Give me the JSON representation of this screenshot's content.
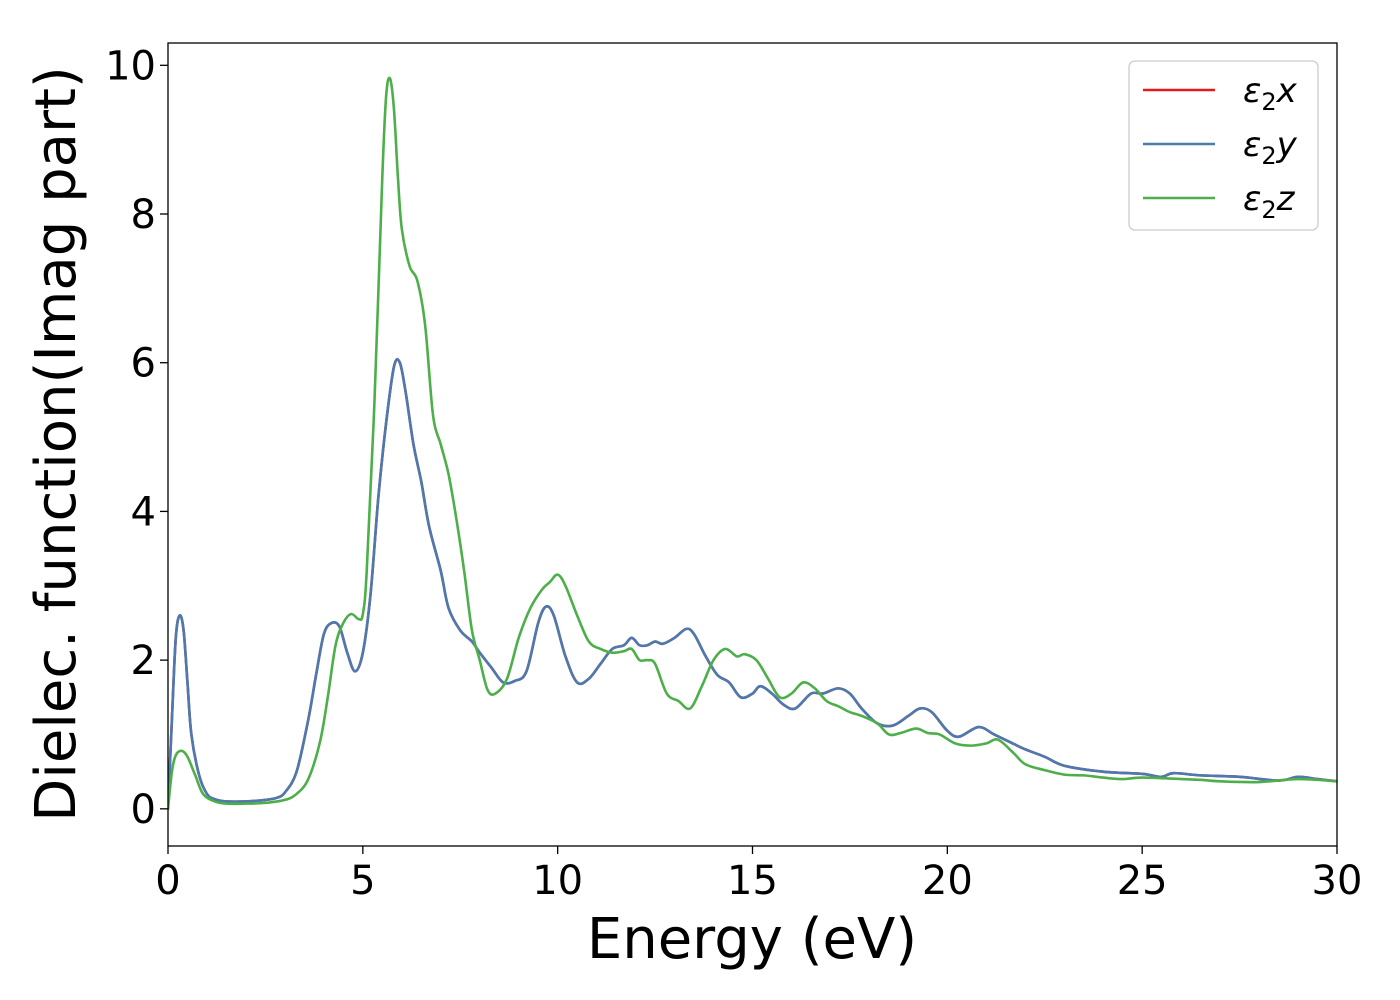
{
  "chart_data": {
    "type": "line",
    "xlabel": "Energy (eV)",
    "ylabel": "Dielec. function(Imag part)",
    "xlim": [
      0,
      30
    ],
    "ylim": [
      -0.5,
      10.3
    ],
    "xticks": [
      0,
      5,
      10,
      15,
      20,
      25,
      30
    ],
    "yticks": [
      0,
      2,
      4,
      6,
      8,
      10
    ],
    "grid": false,
    "legend_position": "top-right",
    "series": [
      {
        "name": "ε2x",
        "legend": {
          "base": "ε",
          "sub": "2",
          "var": "x"
        },
        "color": "#e41a1c",
        "points": [
          [
            0,
            0
          ],
          [
            0.1,
            1.2
          ],
          [
            0.2,
            2.3
          ],
          [
            0.3,
            2.6
          ],
          [
            0.4,
            2.4
          ],
          [
            0.5,
            1.7
          ],
          [
            0.6,
            1.0
          ],
          [
            0.8,
            0.45
          ],
          [
            1.0,
            0.2
          ],
          [
            1.2,
            0.13
          ],
          [
            1.5,
            0.1
          ],
          [
            2.0,
            0.1
          ],
          [
            2.5,
            0.12
          ],
          [
            2.8,
            0.15
          ],
          [
            3.0,
            0.22
          ],
          [
            3.3,
            0.5
          ],
          [
            3.6,
            1.2
          ],
          [
            3.8,
            1.8
          ],
          [
            4.0,
            2.35
          ],
          [
            4.2,
            2.5
          ],
          [
            4.4,
            2.45
          ],
          [
            4.6,
            2.1
          ],
          [
            4.8,
            1.85
          ],
          [
            5.0,
            2.1
          ],
          [
            5.2,
            2.9
          ],
          [
            5.4,
            4.2
          ],
          [
            5.6,
            5.2
          ],
          [
            5.8,
            5.95
          ],
          [
            5.95,
            6.0
          ],
          [
            6.1,
            5.6
          ],
          [
            6.3,
            4.9
          ],
          [
            6.5,
            4.4
          ],
          [
            6.7,
            3.8
          ],
          [
            7.0,
            3.2
          ],
          [
            7.2,
            2.7
          ],
          [
            7.5,
            2.4
          ],
          [
            7.8,
            2.25
          ],
          [
            8.0,
            2.1
          ],
          [
            8.3,
            1.9
          ],
          [
            8.6,
            1.7
          ],
          [
            8.9,
            1.72
          ],
          [
            9.2,
            1.85
          ],
          [
            9.5,
            2.5
          ],
          [
            9.7,
            2.72
          ],
          [
            9.9,
            2.6
          ],
          [
            10.2,
            2.05
          ],
          [
            10.5,
            1.7
          ],
          [
            10.8,
            1.75
          ],
          [
            11.1,
            1.95
          ],
          [
            11.4,
            2.15
          ],
          [
            11.7,
            2.2
          ],
          [
            11.9,
            2.3
          ],
          [
            12.1,
            2.2
          ],
          [
            12.3,
            2.2
          ],
          [
            12.5,
            2.25
          ],
          [
            12.7,
            2.22
          ],
          [
            13.0,
            2.3
          ],
          [
            13.3,
            2.42
          ],
          [
            13.5,
            2.35
          ],
          [
            13.8,
            2.05
          ],
          [
            14.1,
            1.8
          ],
          [
            14.4,
            1.7
          ],
          [
            14.7,
            1.5
          ],
          [
            15.0,
            1.55
          ],
          [
            15.2,
            1.65
          ],
          [
            15.5,
            1.55
          ],
          [
            15.8,
            1.4
          ],
          [
            16.1,
            1.35
          ],
          [
            16.5,
            1.55
          ],
          [
            16.8,
            1.55
          ],
          [
            17.2,
            1.62
          ],
          [
            17.5,
            1.55
          ],
          [
            17.8,
            1.35
          ],
          [
            18.2,
            1.15
          ],
          [
            18.6,
            1.12
          ],
          [
            19.0,
            1.25
          ],
          [
            19.3,
            1.35
          ],
          [
            19.6,
            1.3
          ],
          [
            20.0,
            1.05
          ],
          [
            20.3,
            0.97
          ],
          [
            20.8,
            1.1
          ],
          [
            21.2,
            1.0
          ],
          [
            21.6,
            0.9
          ],
          [
            22.0,
            0.8
          ],
          [
            22.5,
            0.7
          ],
          [
            23.0,
            0.58
          ],
          [
            24.0,
            0.5
          ],
          [
            25.0,
            0.47
          ],
          [
            25.5,
            0.43
          ],
          [
            25.8,
            0.48
          ],
          [
            26.5,
            0.45
          ],
          [
            27.5,
            0.43
          ],
          [
            28.5,
            0.38
          ],
          [
            29.0,
            0.43
          ],
          [
            29.5,
            0.4
          ],
          [
            30.0,
            0.37
          ]
        ]
      },
      {
        "name": "ε2y",
        "legend": {
          "base": "ε",
          "sub": "2",
          "var": "y"
        },
        "color": "#4a7ab0",
        "points": [
          [
            0,
            0
          ],
          [
            0.1,
            1.2
          ],
          [
            0.2,
            2.3
          ],
          [
            0.3,
            2.6
          ],
          [
            0.4,
            2.4
          ],
          [
            0.5,
            1.7
          ],
          [
            0.6,
            1.0
          ],
          [
            0.8,
            0.45
          ],
          [
            1.0,
            0.2
          ],
          [
            1.2,
            0.13
          ],
          [
            1.5,
            0.1
          ],
          [
            2.0,
            0.1
          ],
          [
            2.5,
            0.12
          ],
          [
            2.8,
            0.15
          ],
          [
            3.0,
            0.22
          ],
          [
            3.3,
            0.5
          ],
          [
            3.6,
            1.2
          ],
          [
            3.8,
            1.8
          ],
          [
            4.0,
            2.35
          ],
          [
            4.2,
            2.5
          ],
          [
            4.4,
            2.45
          ],
          [
            4.6,
            2.1
          ],
          [
            4.8,
            1.85
          ],
          [
            5.0,
            2.1
          ],
          [
            5.2,
            2.9
          ],
          [
            5.4,
            4.2
          ],
          [
            5.6,
            5.2
          ],
          [
            5.8,
            5.95
          ],
          [
            5.95,
            6.0
          ],
          [
            6.1,
            5.6
          ],
          [
            6.3,
            4.9
          ],
          [
            6.5,
            4.4
          ],
          [
            6.7,
            3.8
          ],
          [
            7.0,
            3.2
          ],
          [
            7.2,
            2.7
          ],
          [
            7.5,
            2.4
          ],
          [
            7.8,
            2.25
          ],
          [
            8.0,
            2.1
          ],
          [
            8.3,
            1.9
          ],
          [
            8.6,
            1.7
          ],
          [
            8.9,
            1.72
          ],
          [
            9.2,
            1.85
          ],
          [
            9.5,
            2.5
          ],
          [
            9.7,
            2.72
          ],
          [
            9.9,
            2.6
          ],
          [
            10.2,
            2.05
          ],
          [
            10.5,
            1.7
          ],
          [
            10.8,
            1.75
          ],
          [
            11.1,
            1.95
          ],
          [
            11.4,
            2.15
          ],
          [
            11.7,
            2.2
          ],
          [
            11.9,
            2.3
          ],
          [
            12.1,
            2.2
          ],
          [
            12.3,
            2.2
          ],
          [
            12.5,
            2.25
          ],
          [
            12.7,
            2.22
          ],
          [
            13.0,
            2.3
          ],
          [
            13.3,
            2.42
          ],
          [
            13.5,
            2.35
          ],
          [
            13.8,
            2.05
          ],
          [
            14.1,
            1.8
          ],
          [
            14.4,
            1.7
          ],
          [
            14.7,
            1.5
          ],
          [
            15.0,
            1.55
          ],
          [
            15.2,
            1.65
          ],
          [
            15.5,
            1.55
          ],
          [
            15.8,
            1.4
          ],
          [
            16.1,
            1.35
          ],
          [
            16.5,
            1.55
          ],
          [
            16.8,
            1.55
          ],
          [
            17.2,
            1.62
          ],
          [
            17.5,
            1.55
          ],
          [
            17.8,
            1.35
          ],
          [
            18.2,
            1.15
          ],
          [
            18.6,
            1.12
          ],
          [
            19.0,
            1.25
          ],
          [
            19.3,
            1.35
          ],
          [
            19.6,
            1.3
          ],
          [
            20.0,
            1.05
          ],
          [
            20.3,
            0.97
          ],
          [
            20.8,
            1.1
          ],
          [
            21.2,
            1.0
          ],
          [
            21.6,
            0.9
          ],
          [
            22.0,
            0.8
          ],
          [
            22.5,
            0.7
          ],
          [
            23.0,
            0.58
          ],
          [
            24.0,
            0.5
          ],
          [
            25.0,
            0.47
          ],
          [
            25.5,
            0.43
          ],
          [
            25.8,
            0.48
          ],
          [
            26.5,
            0.45
          ],
          [
            27.5,
            0.43
          ],
          [
            28.5,
            0.38
          ],
          [
            29.0,
            0.43
          ],
          [
            29.5,
            0.4
          ],
          [
            30.0,
            0.37
          ]
        ]
      },
      {
        "name": "ε2z",
        "legend": {
          "base": "ε",
          "sub": "2",
          "var": "z"
        },
        "color": "#4daf4a",
        "points": [
          [
            0,
            0
          ],
          [
            0.1,
            0.5
          ],
          [
            0.2,
            0.72
          ],
          [
            0.35,
            0.78
          ],
          [
            0.5,
            0.7
          ],
          [
            0.7,
            0.45
          ],
          [
            0.9,
            0.2
          ],
          [
            1.2,
            0.1
          ],
          [
            1.5,
            0.07
          ],
          [
            2.0,
            0.07
          ],
          [
            2.5,
            0.08
          ],
          [
            3.0,
            0.12
          ],
          [
            3.3,
            0.2
          ],
          [
            3.6,
            0.4
          ],
          [
            3.9,
            0.9
          ],
          [
            4.1,
            1.5
          ],
          [
            4.3,
            2.2
          ],
          [
            4.5,
            2.5
          ],
          [
            4.7,
            2.62
          ],
          [
            4.9,
            2.55
          ],
          [
            5.0,
            2.62
          ],
          [
            5.1,
            3.2
          ],
          [
            5.3,
            5.5
          ],
          [
            5.5,
            8.5
          ],
          [
            5.6,
            9.6
          ],
          [
            5.7,
            9.82
          ],
          [
            5.8,
            9.4
          ],
          [
            5.9,
            8.5
          ],
          [
            6.0,
            7.8
          ],
          [
            6.2,
            7.3
          ],
          [
            6.4,
            7.1
          ],
          [
            6.6,
            6.5
          ],
          [
            6.8,
            5.3
          ],
          [
            7.0,
            4.9
          ],
          [
            7.2,
            4.5
          ],
          [
            7.4,
            3.9
          ],
          [
            7.6,
            3.2
          ],
          [
            7.8,
            2.4
          ],
          [
            8.0,
            2.0
          ],
          [
            8.2,
            1.6
          ],
          [
            8.4,
            1.55
          ],
          [
            8.7,
            1.75
          ],
          [
            9.0,
            2.3
          ],
          [
            9.3,
            2.7
          ],
          [
            9.6,
            2.95
          ],
          [
            9.8,
            3.05
          ],
          [
            10.0,
            3.15
          ],
          [
            10.2,
            3.0
          ],
          [
            10.5,
            2.6
          ],
          [
            10.8,
            2.25
          ],
          [
            11.1,
            2.15
          ],
          [
            11.4,
            2.1
          ],
          [
            11.7,
            2.12
          ],
          [
            11.9,
            2.15
          ],
          [
            12.1,
            2.0
          ],
          [
            12.3,
            2.0
          ],
          [
            12.5,
            1.95
          ],
          [
            12.8,
            1.55
          ],
          [
            13.1,
            1.45
          ],
          [
            13.4,
            1.35
          ],
          [
            13.7,
            1.65
          ],
          [
            14.0,
            2.0
          ],
          [
            14.3,
            2.15
          ],
          [
            14.6,
            2.05
          ],
          [
            14.8,
            2.08
          ],
          [
            15.1,
            2.0
          ],
          [
            15.4,
            1.75
          ],
          [
            15.7,
            1.5
          ],
          [
            16.0,
            1.55
          ],
          [
            16.3,
            1.7
          ],
          [
            16.6,
            1.62
          ],
          [
            16.9,
            1.45
          ],
          [
            17.2,
            1.38
          ],
          [
            17.5,
            1.3
          ],
          [
            17.8,
            1.25
          ],
          [
            18.2,
            1.15
          ],
          [
            18.5,
            1.0
          ],
          [
            18.8,
            1.02
          ],
          [
            19.2,
            1.08
          ],
          [
            19.5,
            1.02
          ],
          [
            19.8,
            1.0
          ],
          [
            20.2,
            0.88
          ],
          [
            20.6,
            0.85
          ],
          [
            21.0,
            0.88
          ],
          [
            21.3,
            0.93
          ],
          [
            21.7,
            0.75
          ],
          [
            22.0,
            0.6
          ],
          [
            22.5,
            0.52
          ],
          [
            23.0,
            0.46
          ],
          [
            23.5,
            0.45
          ],
          [
            24.0,
            0.42
          ],
          [
            24.5,
            0.4
          ],
          [
            25.0,
            0.42
          ],
          [
            26.0,
            0.4
          ],
          [
            26.5,
            0.39
          ],
          [
            27.0,
            0.37
          ],
          [
            28.0,
            0.36
          ],
          [
            29.0,
            0.4
          ],
          [
            30.0,
            0.37
          ]
        ]
      }
    ]
  }
}
